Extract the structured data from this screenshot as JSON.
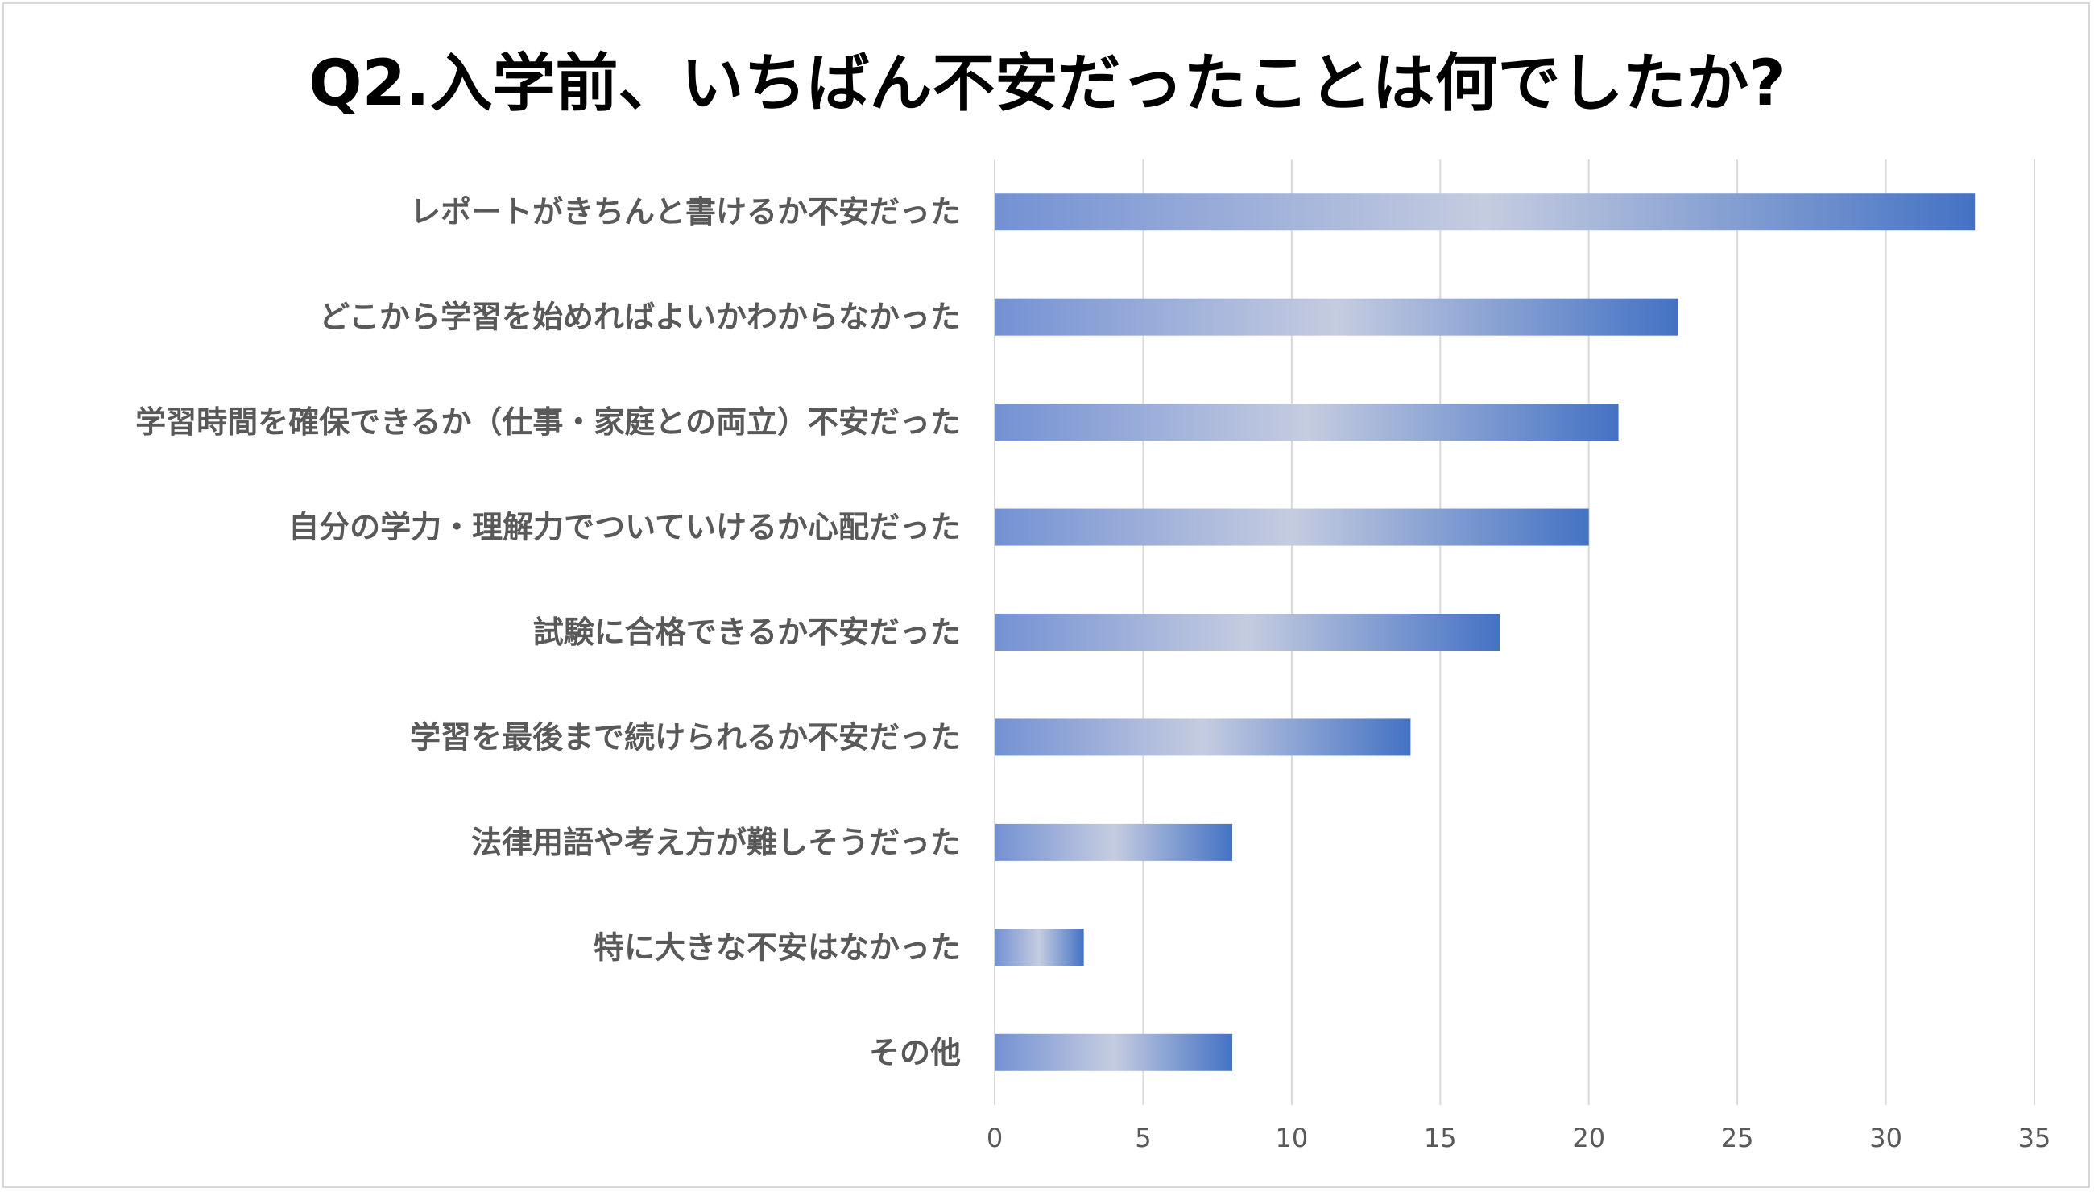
{
  "colors": {
    "bar_start": "#7391d3",
    "bar_mid": "#c5cce0",
    "bar_end": "#4472c4",
    "grid": "#d9d9d9",
    "category_text": "#595959",
    "tick_text": "#595959",
    "title_text": "#000000"
  },
  "chart_data": {
    "type": "bar",
    "orientation": "horizontal",
    "title": "Q2.入学前、いちばん不安だったことは何でしたか?",
    "xlabel": "",
    "ylabel": "",
    "categories": [
      "レポートがきちんと書けるか不安だった",
      "どこから学習を始めればよいかわからなかった",
      "学習時間を確保できるか（仕事・家庭との両立）不安だった",
      "自分の学力・理解力でついていけるか心配だった",
      "試験に合格できるか不安だった",
      "学習を最後まで続けられるか不安だった",
      "法律用語や考え方が難しそうだった",
      "特に大きな不安はなかった",
      "その他"
    ],
    "values": [
      33,
      23,
      21,
      20,
      17,
      14,
      8,
      3,
      8
    ],
    "xlim": [
      0,
      35
    ],
    "xticks": [
      "0",
      "5",
      "10",
      "15",
      "20",
      "25",
      "30",
      "35"
    ],
    "grid": true,
    "legend": "none"
  }
}
